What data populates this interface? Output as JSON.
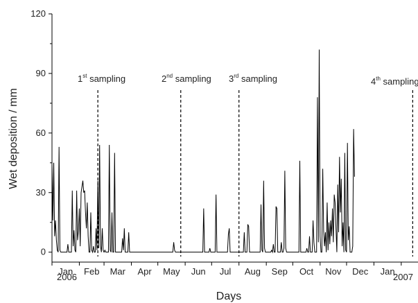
{
  "chart_data": {
    "type": "line",
    "title": "",
    "xlabel": "Days",
    "ylabel": "Wet deposition / mm",
    "ylim": [
      -5,
      120
    ],
    "yticks": [
      0,
      30,
      60,
      90,
      120
    ],
    "xlim": [
      "2006-01-01",
      "2007-02-20"
    ],
    "month_labels": [
      "Jan",
      "Feb",
      "Mar",
      "Apr",
      "May",
      "Jun",
      "Jul",
      "Aug",
      "Sep",
      "Oct",
      "Nov",
      "Dec",
      "Jan"
    ],
    "year_labels": [
      "2006",
      "2007"
    ],
    "grid": false,
    "series": [
      {
        "points": [
          [
            "2006-01-01",
            45
          ],
          [
            "2006-01-02",
            16
          ],
          [
            "2006-01-03",
            45
          ],
          [
            "2006-01-04",
            8
          ],
          [
            "2006-01-05",
            16
          ],
          [
            "2006-01-06",
            6
          ],
          [
            "2006-01-07",
            1
          ],
          [
            "2006-01-09",
            53
          ],
          [
            "2006-01-10",
            1
          ],
          [
            "2006-01-12",
            0
          ],
          [
            "2006-01-17",
            0
          ],
          [
            "2006-01-19",
            4
          ],
          [
            "2006-01-21",
            0
          ],
          [
            "2006-01-23",
            0
          ],
          [
            "2006-01-24",
            31
          ],
          [
            "2006-01-25",
            3
          ],
          [
            "2006-01-26",
            11
          ],
          [
            "2006-01-27",
            1
          ],
          [
            "2006-01-29",
            31
          ],
          [
            "2006-01-30",
            6
          ],
          [
            "2006-01-31",
            11
          ],
          [
            "2006-02-01",
            22
          ],
          [
            "2006-02-02",
            3
          ],
          [
            "2006-02-03",
            30
          ],
          [
            "2006-02-04",
            33
          ],
          [
            "2006-02-05",
            36
          ],
          [
            "2006-02-06",
            30
          ],
          [
            "2006-02-07",
            31
          ],
          [
            "2006-02-08",
            20
          ],
          [
            "2006-02-09",
            12
          ],
          [
            "2006-02-10",
            25
          ],
          [
            "2006-02-11",
            8
          ],
          [
            "2006-02-12",
            0
          ],
          [
            "2006-02-14",
            20
          ],
          [
            "2006-02-15",
            1
          ],
          [
            "2006-02-17",
            3
          ],
          [
            "2006-02-18",
            0
          ],
          [
            "2006-02-20",
            12
          ],
          [
            "2006-02-21",
            1
          ],
          [
            "2006-02-22",
            36
          ],
          [
            "2006-02-23",
            2
          ],
          [
            "2006-02-24",
            54
          ],
          [
            "2006-02-25",
            3
          ],
          [
            "2006-02-26",
            0
          ],
          [
            "2006-02-27",
            12
          ],
          [
            "2006-02-28",
            1
          ],
          [
            "2006-03-02",
            1
          ],
          [
            "2006-03-04",
            0
          ],
          [
            "2006-03-07",
            54
          ],
          [
            "2006-03-08",
            1
          ],
          [
            "2006-03-10",
            20
          ],
          [
            "2006-03-11",
            0
          ],
          [
            "2006-03-13",
            50
          ],
          [
            "2006-03-14",
            0
          ],
          [
            "2006-03-20",
            0
          ],
          [
            "2006-03-22",
            7
          ],
          [
            "2006-03-23",
            1
          ],
          [
            "2006-03-24",
            12
          ],
          [
            "2006-03-25",
            0
          ],
          [
            "2006-03-28",
            0
          ],
          [
            "2006-03-29",
            10
          ],
          [
            "2006-03-30",
            0
          ],
          [
            "2006-05-18",
            0
          ],
          [
            "2006-05-19",
            5
          ],
          [
            "2006-05-20",
            1
          ],
          [
            "2006-05-21",
            0
          ],
          [
            "2006-06-21",
            0
          ],
          [
            "2006-06-22",
            22
          ],
          [
            "2006-06-23",
            0
          ],
          [
            "2006-06-28",
            0
          ],
          [
            "2006-06-29",
            2
          ],
          [
            "2006-06-30",
            0
          ],
          [
            "2006-07-05",
            0
          ],
          [
            "2006-07-06",
            29
          ],
          [
            "2006-07-07",
            0
          ],
          [
            "2006-07-19",
            0
          ],
          [
            "2006-07-20",
            9
          ],
          [
            "2006-07-21",
            12
          ],
          [
            "2006-07-22",
            0
          ],
          [
            "2006-08-06",
            0
          ],
          [
            "2006-08-07",
            10
          ],
          [
            "2006-08-08",
            0
          ],
          [
            "2006-08-11",
            14
          ],
          [
            "2006-08-12",
            13
          ],
          [
            "2006-08-13",
            0
          ],
          [
            "2006-08-25",
            0
          ],
          [
            "2006-08-26",
            24
          ],
          [
            "2006-08-27",
            1
          ],
          [
            "2006-08-29",
            36
          ],
          [
            "2006-08-30",
            2
          ],
          [
            "2006-09-01",
            0
          ],
          [
            "2006-09-07",
            1
          ],
          [
            "2006-09-09",
            4
          ],
          [
            "2006-09-10",
            0
          ],
          [
            "2006-09-12",
            23
          ],
          [
            "2006-09-13",
            22
          ],
          [
            "2006-09-14",
            0
          ],
          [
            "2006-09-17",
            0
          ],
          [
            "2006-09-18",
            5
          ],
          [
            "2006-09-19",
            0
          ],
          [
            "2006-09-21",
            2
          ],
          [
            "2006-09-22",
            41
          ],
          [
            "2006-09-23",
            2
          ],
          [
            "2006-09-24",
            0
          ],
          [
            "2006-10-08",
            0
          ],
          [
            "2006-10-09",
            46
          ],
          [
            "2006-10-10",
            0
          ],
          [
            "2006-10-16",
            0
          ],
          [
            "2006-10-17",
            2
          ],
          [
            "2006-10-18",
            0
          ],
          [
            "2006-10-20",
            8
          ],
          [
            "2006-10-21",
            0
          ],
          [
            "2006-10-24",
            16
          ],
          [
            "2006-10-25",
            5
          ],
          [
            "2006-10-26",
            0
          ],
          [
            "2006-10-29",
            78
          ],
          [
            "2006-10-30",
            5
          ],
          [
            "2006-10-31",
            102
          ],
          [
            "2006-11-01",
            8
          ],
          [
            "2006-11-02",
            0
          ],
          [
            "2006-11-04",
            42
          ],
          [
            "2006-11-05",
            11
          ],
          [
            "2006-11-06",
            3
          ],
          [
            "2006-11-07",
            10
          ],
          [
            "2006-11-08",
            0
          ],
          [
            "2006-11-09",
            25
          ],
          [
            "2006-11-10",
            1
          ],
          [
            "2006-11-11",
            15
          ],
          [
            "2006-11-12",
            4
          ],
          [
            "2006-11-13",
            16
          ],
          [
            "2006-11-14",
            8
          ],
          [
            "2006-11-15",
            22
          ],
          [
            "2006-11-16",
            5
          ],
          [
            "2006-11-17",
            29
          ],
          [
            "2006-11-18",
            25
          ],
          [
            "2006-11-19",
            12
          ],
          [
            "2006-11-20",
            0
          ],
          [
            "2006-11-21",
            34
          ],
          [
            "2006-11-22",
            10
          ],
          [
            "2006-11-23",
            48
          ],
          [
            "2006-11-24",
            20
          ],
          [
            "2006-11-25",
            37
          ],
          [
            "2006-11-26",
            3
          ],
          [
            "2006-11-27",
            15
          ],
          [
            "2006-11-28",
            0
          ],
          [
            "2006-11-29",
            50
          ],
          [
            "2006-11-30",
            1
          ],
          [
            "2006-12-02",
            55
          ],
          [
            "2006-12-03",
            6
          ],
          [
            "2006-12-04",
            13
          ],
          [
            "2006-12-05",
            0
          ],
          [
            "2006-12-07",
            0
          ],
          [
            "2006-12-08",
            3
          ],
          [
            "2006-12-09",
            62
          ],
          [
            "2006-12-10",
            38
          ]
        ]
      }
    ]
  },
  "annotations": {
    "s1": {
      "pre": "1",
      "sup": "st",
      "post": " sampling"
    },
    "s2": {
      "pre": "2",
      "sup": "nd",
      "post": " sampling"
    },
    "s3": {
      "pre": "3",
      "sup": "rd",
      "post": " sampling"
    },
    "s4": {
      "pre": "4",
      "sup": "th",
      "post": " sampling"
    }
  }
}
